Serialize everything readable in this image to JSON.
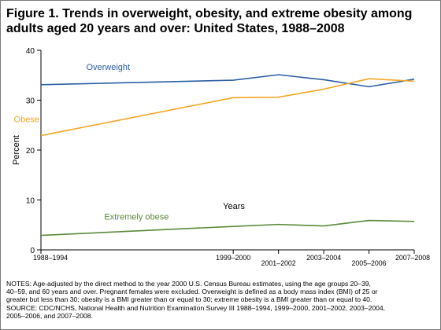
{
  "figure": {
    "title": "Figure 1. Trends in overweight, obesity, and extreme obesity among adults aged 20 years and over: United States, 1988–2008"
  },
  "chart_data": {
    "type": "line",
    "xlabel": "Years",
    "ylabel": "Percent",
    "ylim": [
      0,
      40
    ],
    "yticks": [
      0,
      10,
      20,
      30,
      40
    ],
    "grid": false,
    "x_positions": [
      1991,
      1999.5,
      2001.5,
      2003.5,
      2005.5,
      2007.5
    ],
    "categories": [
      "1988–1994",
      "1999–2000",
      "2001–2002",
      "2003–2004",
      "2005–2006",
      "2007–2008"
    ],
    "series": [
      {
        "name": "Overweight",
        "color": "#2b5fa3",
        "values": [
          33.1,
          34.0,
          35.1,
          34.1,
          32.7,
          34.2
        ]
      },
      {
        "name": "Obese",
        "color": "#f5a623",
        "values": [
          22.9,
          30.5,
          30.6,
          32.2,
          34.3,
          33.8
        ]
      },
      {
        "name": "Extremely obese",
        "color": "#5b8a3a",
        "values": [
          2.9,
          4.7,
          5.1,
          4.8,
          5.9,
          5.7
        ]
      }
    ]
  },
  "notes": {
    "line1": "NOTES: Age-adjusted by the direct method to the year 2000 U.S. Census Bureau estimates, using the age groups 20–39,",
    "line2": "40–59, and 60 years and over. Pregnant females were excluded. Overweight is defined as a body mass index (BMI) of 25 or",
    "line3": "greater but less than 30; obesity is a BMI greater than or equal to 30; extreme obesity is a BMI greater than or equal to 40.",
    "line4": "SOURCE: CDC/NCHS, National Health and Nutrition Examination Survey III 1988–1994, 1999–2000, 2001–2002, 2003–2004,",
    "line5": "2005–2006, and 2007–2008."
  }
}
